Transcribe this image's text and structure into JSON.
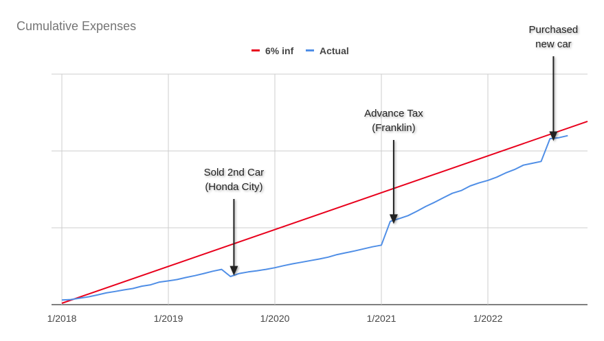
{
  "chart_data": {
    "type": "line",
    "title": "Cumulative Expenses",
    "xlabel": "",
    "ylabel": "",
    "x_ticks": [
      "1/2018",
      "1/2019",
      "1/2020",
      "1/2021",
      "1/2022"
    ],
    "xlim": [
      "2018-01",
      "2022-12"
    ],
    "ylim": [
      0,
      100
    ],
    "y_tick_labels": [],
    "grid": true,
    "legend_position": "top-center",
    "series": [
      {
        "name": "6% inf",
        "color": "#e8001c",
        "x": [
          "2018-01",
          "2022-12"
        ],
        "values": [
          0.6,
          79.5
        ]
      },
      {
        "name": "Actual",
        "color": "#4f8ee6",
        "x": [
          "2018-01",
          "2018-02",
          "2018-03",
          "2018-04",
          "2018-05",
          "2018-06",
          "2018-07",
          "2018-08",
          "2018-09",
          "2018-10",
          "2018-11",
          "2018-12",
          "2019-01",
          "2019-02",
          "2019-03",
          "2019-04",
          "2019-05",
          "2019-06",
          "2019-07",
          "2019-08",
          "2019-09",
          "2019-10",
          "2019-11",
          "2019-12",
          "2020-01",
          "2020-02",
          "2020-03",
          "2020-04",
          "2020-05",
          "2020-06",
          "2020-07",
          "2020-08",
          "2020-09",
          "2020-10",
          "2020-11",
          "2020-12",
          "2021-01",
          "2021-02",
          "2021-03",
          "2021-04",
          "2021-05",
          "2021-06",
          "2021-07",
          "2021-08",
          "2021-09",
          "2021-10",
          "2021-11",
          "2021-12",
          "2022-01",
          "2022-02",
          "2022-03",
          "2022-04",
          "2022-05",
          "2022-06",
          "2022-07",
          "2022-08",
          "2022-09",
          "2022-10"
        ],
        "values": [
          2.0,
          2.2,
          2.8,
          3.4,
          4.2,
          5.1,
          5.7,
          6.4,
          7.0,
          8.0,
          8.6,
          9.8,
          10.3,
          10.9,
          11.8,
          12.6,
          13.5,
          14.5,
          15.3,
          12.2,
          13.5,
          14.2,
          14.7,
          15.3,
          16.0,
          16.9,
          17.7,
          18.4,
          19.1,
          19.8,
          20.6,
          21.7,
          22.5,
          23.3,
          24.2,
          25.1,
          25.8,
          36.1,
          37.3,
          38.6,
          40.5,
          42.6,
          44.4,
          46.4,
          48.3,
          49.5,
          51.5,
          52.8,
          53.9,
          55.3,
          57.1,
          58.6,
          60.5,
          61.3,
          62.1,
          72.0,
          72.4,
          73.3
        ]
      }
    ],
    "annotations": [
      {
        "lines": [
          "Sold 2nd Car",
          "(Honda City)"
        ],
        "at_x": "2019-08",
        "arrow_to_value": 12.6
      },
      {
        "lines": [
          "Advance Tax",
          "(Franklin)"
        ],
        "at_x": "2021-02",
        "arrow_to_value": 35.0
      },
      {
        "lines": [
          "Purchased",
          "new car"
        ],
        "at_x": "2022-08",
        "arrow_to_value": 71.0
      }
    ]
  }
}
